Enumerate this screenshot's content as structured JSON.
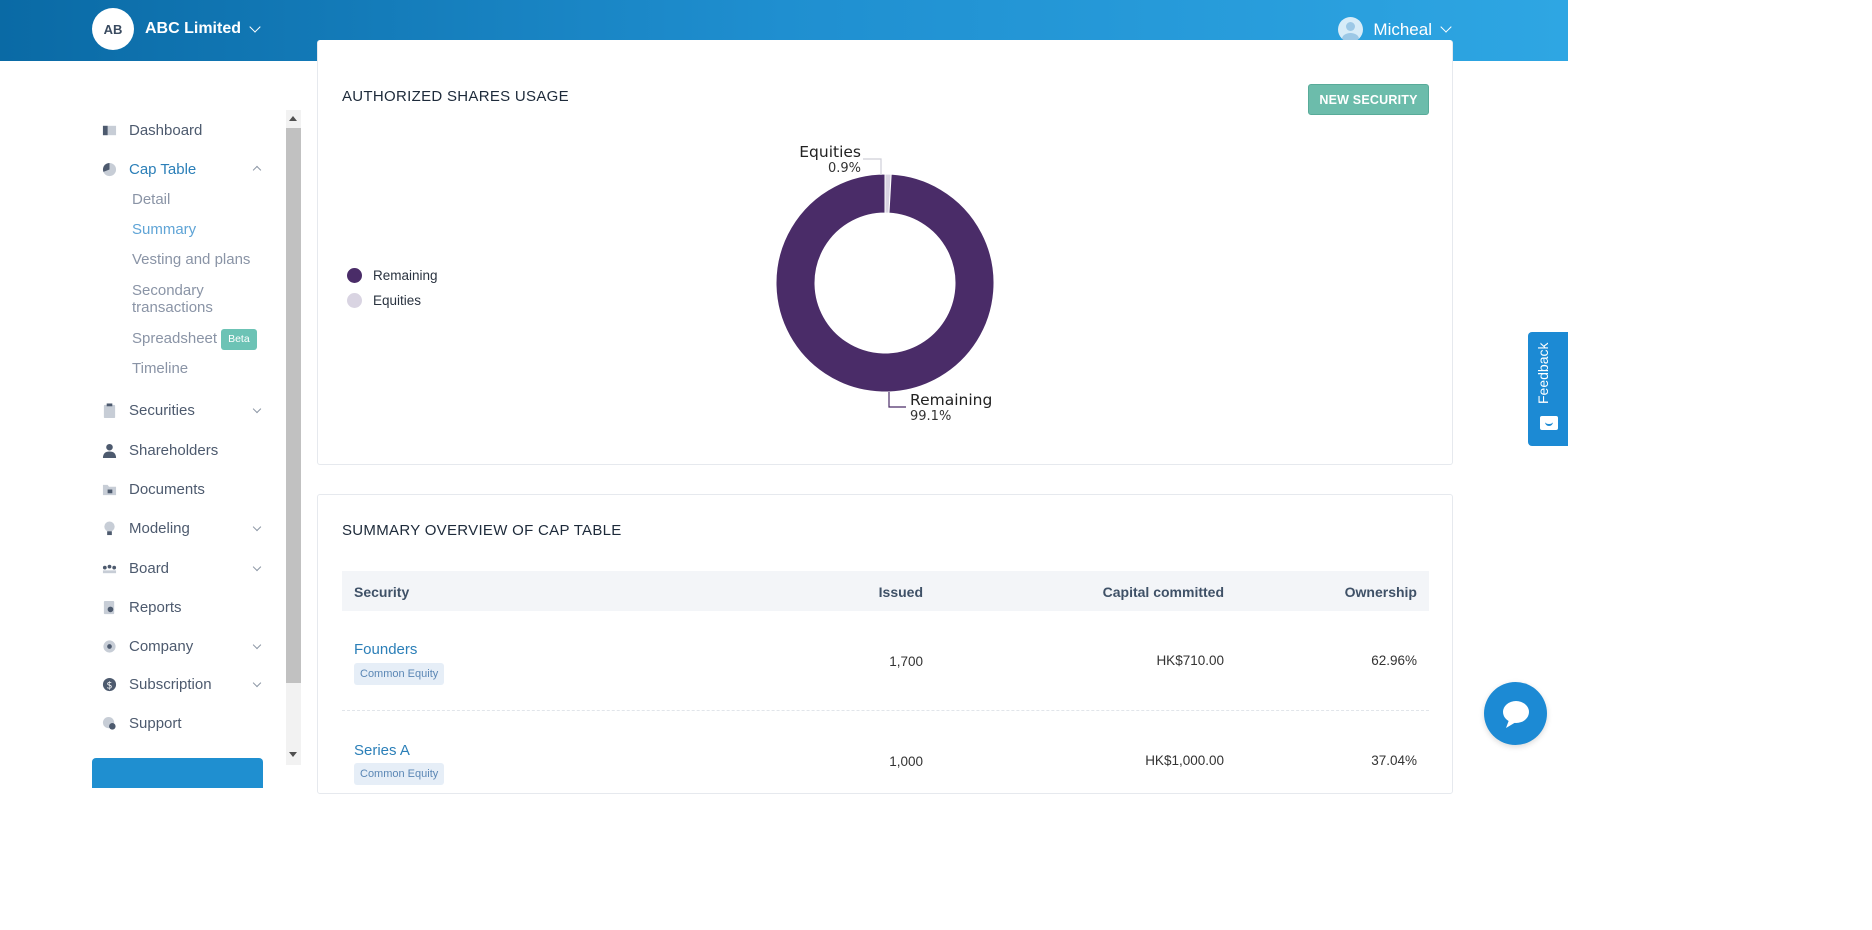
{
  "header": {
    "org_initials": "AB",
    "org_name": "ABC Limited",
    "user_name": "Micheal"
  },
  "sidebar": {
    "items": [
      {
        "label": "Dashboard",
        "icon": "dashboard-icon"
      },
      {
        "label": "Cap Table",
        "icon": "pie-chart-icon",
        "active": true,
        "expanded": true,
        "children": [
          {
            "label": "Detail"
          },
          {
            "label": "Summary",
            "active": true
          },
          {
            "label": "Vesting and plans"
          },
          {
            "label": "Secondary transactions"
          },
          {
            "label": "Spreadsheet",
            "badge": "Beta"
          },
          {
            "label": "Timeline"
          }
        ]
      },
      {
        "label": "Securities",
        "icon": "clipboard-icon",
        "has_submenu": true
      },
      {
        "label": "Shareholders",
        "icon": "person-icon"
      },
      {
        "label": "Documents",
        "icon": "folder-lock-icon"
      },
      {
        "label": "Modeling",
        "icon": "lightbulb-icon",
        "has_submenu": true
      },
      {
        "label": "Board",
        "icon": "board-people-icon",
        "has_submenu": true
      },
      {
        "label": "Reports",
        "icon": "report-icon"
      },
      {
        "label": "Company",
        "icon": "company-icon",
        "has_submenu": true
      },
      {
        "label": "Subscription",
        "icon": "dollar-icon",
        "has_submenu": true
      },
      {
        "label": "Support",
        "icon": "support-icon"
      }
    ]
  },
  "usage_card": {
    "title": "AUTHORIZED SHARES USAGE",
    "new_security_label": "NEW SECURITY",
    "legend": [
      {
        "label": "Remaining",
        "color": "#4a2c68"
      },
      {
        "label": "Equities",
        "color": "#d9d4e2"
      }
    ]
  },
  "chart_data": {
    "type": "pie",
    "donut": true,
    "slices": [
      {
        "label": "Equities",
        "value": 0.9,
        "value_label": "0.9%",
        "color": "#d9d4e2"
      },
      {
        "label": "Remaining",
        "value": 99.1,
        "value_label": "99.1%",
        "color": "#4a2c68"
      }
    ],
    "legend_position": "left"
  },
  "summary_card": {
    "title": "SUMMARY OVERVIEW OF CAP TABLE",
    "columns": [
      "Security",
      "Issued",
      "Capital committed",
      "Ownership"
    ],
    "rows": [
      {
        "security": "Founders",
        "tag": "Common Equity",
        "issued": "1,700",
        "capital": "HK$710.00",
        "ownership": "62.96%"
      },
      {
        "security": "Series A",
        "tag": "Common Equity",
        "issued": "1,000",
        "capital": "HK$1,000.00",
        "ownership": "37.04%"
      }
    ]
  },
  "widgets": {
    "feedback_label": "Feedback"
  }
}
